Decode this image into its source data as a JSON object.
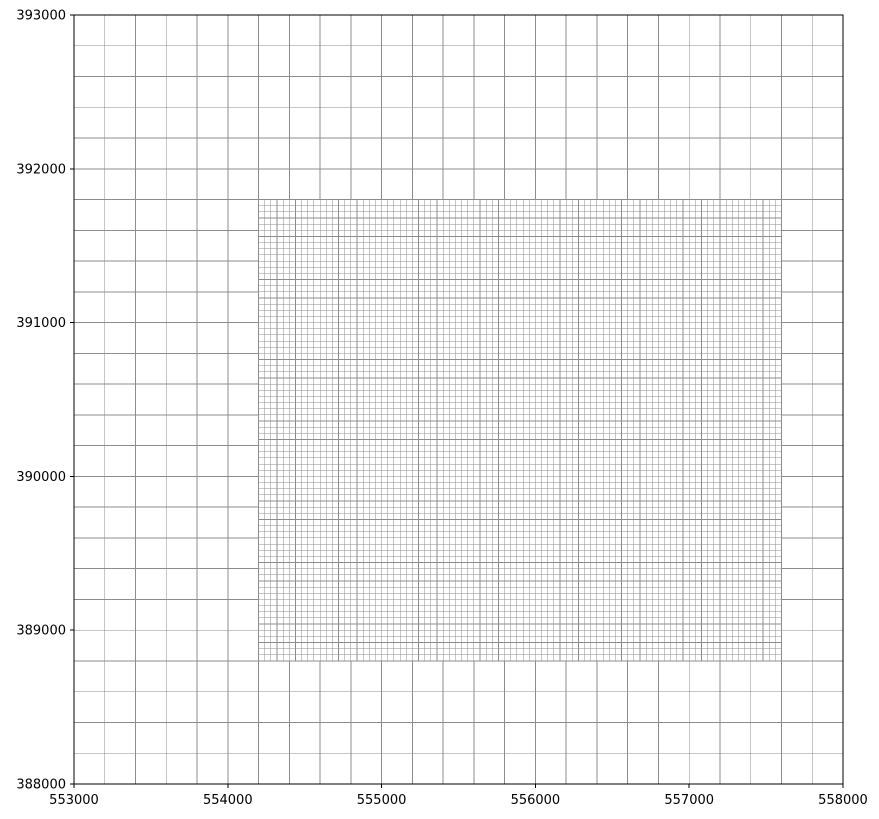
{
  "chart_data": {
    "type": "grid-mesh",
    "title": "",
    "xlabel": "",
    "ylabel": "",
    "xlim": [
      553000,
      558000
    ],
    "ylim": [
      388000,
      393000
    ],
    "xticks": [
      "553000",
      "554000",
      "555000",
      "556000",
      "557000",
      "558000"
    ],
    "yticks": [
      "388000",
      "389000",
      "390000",
      "391000",
      "392000",
      "393000"
    ],
    "xtick_values": [
      553000,
      554000,
      555000,
      556000,
      557000,
      558000
    ],
    "ytick_values": [
      388000,
      389000,
      390000,
      391000,
      392000,
      393000
    ],
    "coarse_grid": {
      "cell_size": 200
    },
    "refined_grid": {
      "xmin": 554200,
      "xmax": 557600,
      "ymin": 388800,
      "ymax": 391800,
      "cell_size": 40
    },
    "line_color": "#8c8c8c",
    "frame_color": "#000000"
  }
}
